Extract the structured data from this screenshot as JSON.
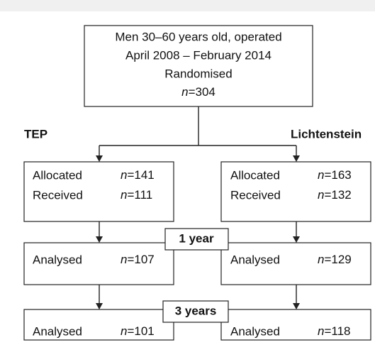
{
  "top": {
    "lines": [
      "Men 30–60 years old, operated",
      "April 2008 – February 2014",
      "Randomised"
    ],
    "n": "n=304"
  },
  "arms": [
    {
      "name": "TEP",
      "allocated": {
        "label": "Allocated",
        "n": "n=141"
      },
      "received": {
        "label": "Received",
        "n": "n=111"
      },
      "year1": {
        "label": "Analysed",
        "n": "n=107"
      },
      "year3": {
        "label": "Analysed",
        "n": "n=101"
      }
    },
    {
      "name": "Lichtenstein",
      "allocated": {
        "label": "Allocated",
        "n": "n=163"
      },
      "received": {
        "label": "Received",
        "n": "n=132"
      },
      "year1": {
        "label": "Analysed",
        "n": "n=129"
      },
      "year3": {
        "label": "Analysed",
        "n": "n=118"
      }
    }
  ],
  "stages": [
    "1 year",
    "3 years"
  ]
}
